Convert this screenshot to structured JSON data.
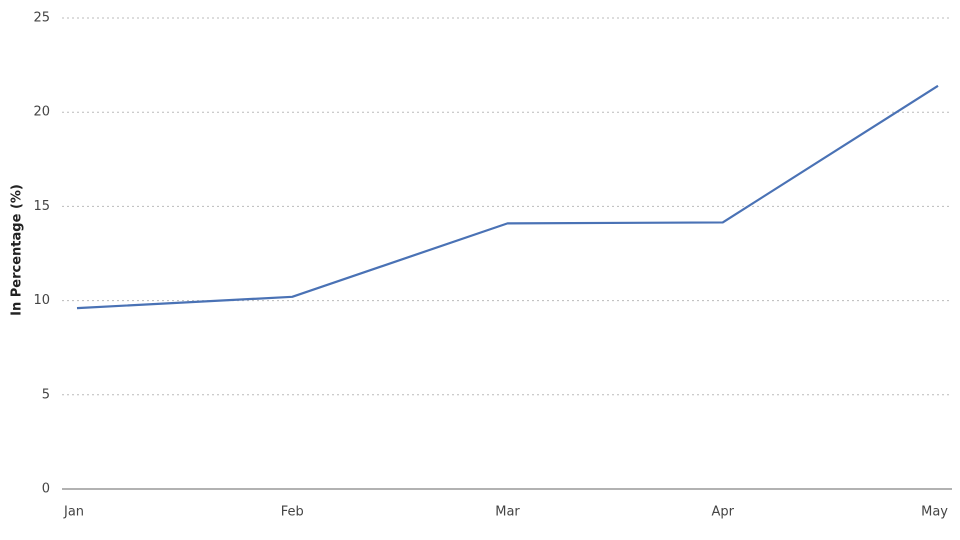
{
  "chart_data": {
    "type": "line",
    "y_label": "In Percentage (%)",
    "categories": [
      "Jan",
      "Feb",
      "Mar",
      "Apr",
      "May"
    ],
    "values": [
      9.6,
      10.2,
      14.1,
      14.15,
      21.4
    ],
    "color": "#4a72b5",
    "ylim": [
      0,
      25
    ],
    "yticks": [
      0,
      5,
      10,
      15,
      20,
      25
    ],
    "grid": true
  }
}
